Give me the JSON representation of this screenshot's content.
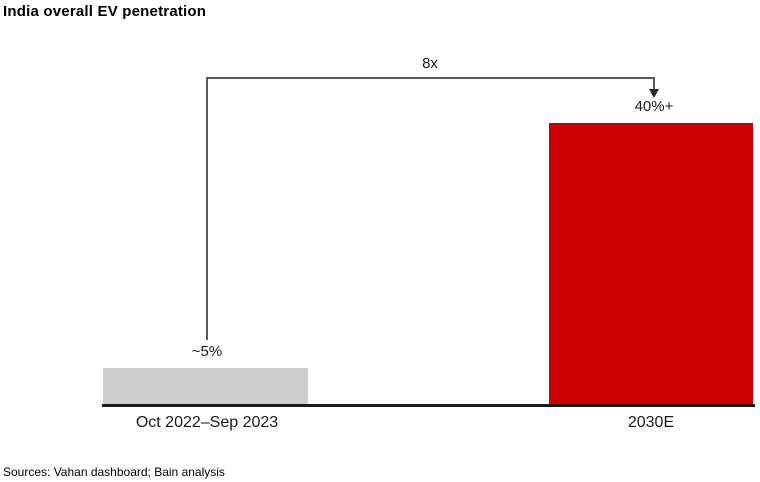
{
  "header": {
    "title": "India overall EV penetration"
  },
  "chart_data": {
    "type": "bar",
    "title": "India overall EV penetration",
    "categories": [
      "Oct 2022–Sep 2023",
      "2030E"
    ],
    "values": [
      5,
      40
    ],
    "value_labels": [
      "~5%",
      "40%+"
    ],
    "annotations": [
      {
        "type": "growth-arrow",
        "label": "8x",
        "from": "Oct 2022–Sep 2023",
        "to": "2030E"
      }
    ],
    "bar_colors": [
      "#cdcdcd",
      "#cc0000"
    ],
    "axis_color": "#1a1a1a",
    "arrow_color": "#595959",
    "xlabel": "",
    "ylabel": "",
    "ylim": [
      0,
      45
    ],
    "grid": false,
    "legend": "none"
  },
  "footer": {
    "sources": "Sources: Vahan dashboard; Bain analysis"
  }
}
